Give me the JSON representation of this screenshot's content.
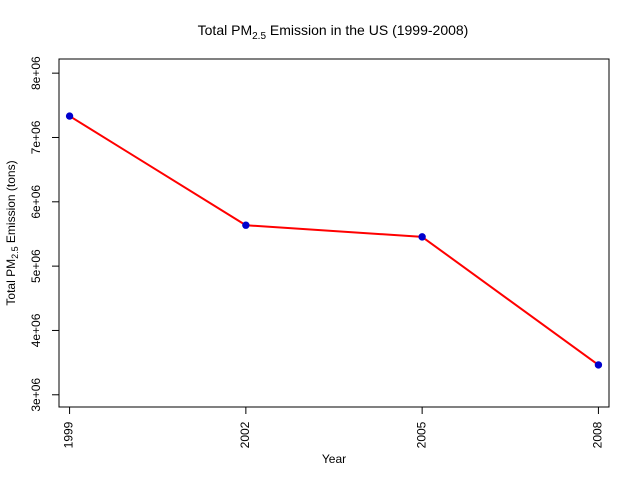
{
  "chart_data": {
    "type": "line",
    "title": {
      "prefix": "Total PM",
      "subscript": "2.5",
      "suffix": " Emission in the US (1999-2008)"
    },
    "xlabel": "Year",
    "ylabel": {
      "prefix": "Total PM",
      "subscript": "2.5",
      "suffix": " Emission (tons)"
    },
    "x": [
      1999,
      2002,
      2005,
      2008
    ],
    "x_tick_labels": [
      "1999",
      "2002",
      "2005",
      "2008"
    ],
    "values": [
      7332967,
      5635780,
      5454703,
      3464206
    ],
    "y_ticks": [
      3000000,
      4000000,
      5000000,
      6000000,
      7000000,
      8000000
    ],
    "y_tick_labels": [
      "3e+06",
      "4e+06",
      "5e+06",
      "6e+06",
      "7e+06",
      "8e+06"
    ],
    "xlim": [
      1998.82,
      2008.18
    ],
    "ylim": [
      2810000,
      8220000
    ],
    "grid": false,
    "colors": {
      "line": "#ff0000",
      "point": "#0000cd",
      "axis": "#000000"
    }
  }
}
